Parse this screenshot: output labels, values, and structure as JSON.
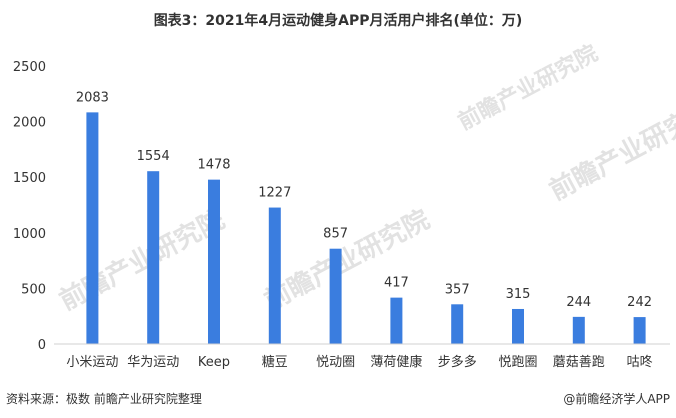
{
  "title": "图表3：2021年4月运动健身APP月活用户排名(单位：万)",
  "source": "资料来源：极数 前瞻产业研究院整理",
  "brand": "@前瞻经济学人APP",
  "watermark": "前瞻产业研究院",
  "colors": {
    "bar": "#3a7ddf",
    "axis": "#d0d0d0",
    "text": "#333333"
  },
  "chart_data": {
    "type": "bar",
    "title": "图表3：2021年4月运动健身APP月活用户排名(单位：万)",
    "categories": [
      "小米运动",
      "华为运动",
      "Keep",
      "糖豆",
      "悦动圈",
      "薄荷健康",
      "步多多",
      "悦跑圈",
      "蘑菇善跑",
      "咕咚"
    ],
    "values": [
      2083,
      1554,
      1478,
      1227,
      857,
      417,
      357,
      315,
      244,
      242
    ],
    "ylim": [
      0,
      2500
    ],
    "yticks": [
      0,
      500,
      1000,
      1500,
      2000,
      2500
    ],
    "grid": false,
    "data_labels": true
  }
}
